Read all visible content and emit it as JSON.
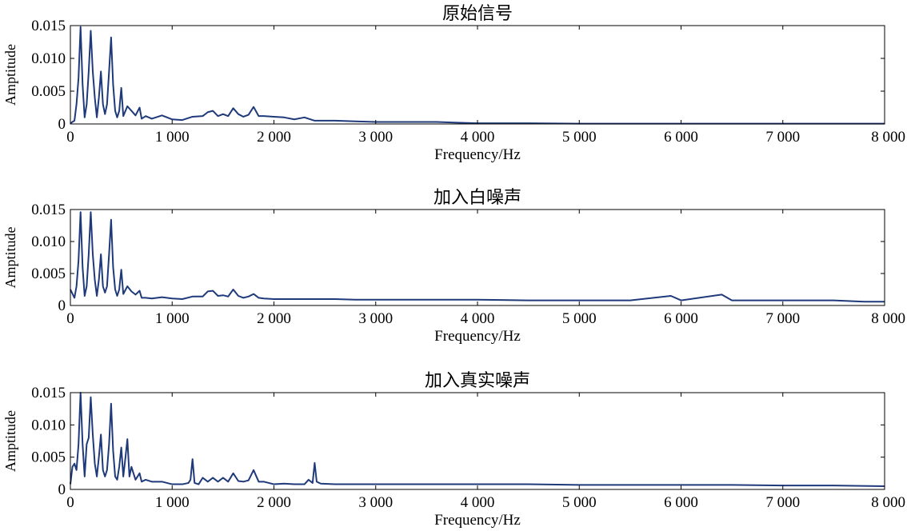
{
  "colors": {
    "line": "#1f3a7a",
    "axis": "#000000",
    "background": "#ffffff"
  },
  "chart_data": [
    {
      "type": "line",
      "title": "原始信号",
      "xlabel": "Frequency/Hz",
      "ylabel": "Amptitude",
      "xlim": [
        0,
        8000
      ],
      "ylim": [
        0,
        0.015
      ],
      "xticks": [
        0,
        1000,
        2000,
        3000,
        4000,
        5000,
        6000,
        7000,
        8000
      ],
      "xtick_labels": [
        "0",
        "1 000",
        "2 000",
        "3 000",
        "4 000",
        "5 000",
        "6 000",
        "7 000",
        "8 000"
      ],
      "yticks": [
        0,
        0.005,
        0.01,
        0.015
      ],
      "ytick_labels": [
        "0",
        "0.005",
        "0.010",
        "0.015"
      ],
      "grid": false,
      "series": [
        {
          "x": [
            0,
            40,
            60,
            80,
            100,
            120,
            140,
            160,
            180,
            200,
            220,
            240,
            260,
            280,
            300,
            320,
            340,
            360,
            380,
            400,
            420,
            440,
            460,
            480,
            500,
            520,
            560,
            600,
            640,
            680,
            700,
            740,
            800,
            900,
            1000,
            1100,
            1200,
            1300,
            1350,
            1400,
            1450,
            1500,
            1550,
            1600,
            1650,
            1700,
            1750,
            1800,
            1850,
            1900,
            2000,
            2100,
            2200,
            2300,
            2400,
            2600,
            2800,
            3000,
            3200,
            3400,
            3600,
            3800,
            4000,
            4500,
            5000,
            6000,
            7000,
            8000
          ],
          "y": [
            0.0001,
            0.0005,
            0.003,
            0.007,
            0.0148,
            0.006,
            0.001,
            0.003,
            0.008,
            0.0142,
            0.008,
            0.004,
            0.001,
            0.004,
            0.008,
            0.003,
            0.0015,
            0.003,
            0.008,
            0.0132,
            0.006,
            0.002,
            0.001,
            0.002,
            0.0055,
            0.0012,
            0.0027,
            0.002,
            0.0013,
            0.0025,
            0.0008,
            0.0012,
            0.0008,
            0.0013,
            0.0007,
            0.0006,
            0.0011,
            0.0012,
            0.0018,
            0.002,
            0.0012,
            0.0015,
            0.0012,
            0.0024,
            0.0015,
            0.0011,
            0.0014,
            0.0026,
            0.0012,
            0.0012,
            0.0011,
            0.001,
            0.0007,
            0.001,
            0.0005,
            0.0005,
            0.0004,
            0.0003,
            0.0003,
            0.0003,
            0.0003,
            0.0002,
            0.0001,
            0.0001,
            5e-05,
            5e-05,
            5e-05,
            5e-05
          ]
        }
      ]
    },
    {
      "type": "line",
      "title": "加入白噪声",
      "xlabel": "Frequency/Hz",
      "ylabel": "Amptitude",
      "xlim": [
        0,
        8000
      ],
      "ylim": [
        0,
        0.015
      ],
      "xticks": [
        0,
        1000,
        2000,
        3000,
        4000,
        5000,
        6000,
        7000,
        8000
      ],
      "xtick_labels": [
        "0",
        "1 000",
        "2 000",
        "3 000",
        "4 000",
        "5 000",
        "6 000",
        "7 000",
        "8 000"
      ],
      "yticks": [
        0,
        0.005,
        0.01,
        0.015
      ],
      "ytick_labels": [
        "0",
        "0.005",
        "0.010",
        "0.015"
      ],
      "grid": false,
      "series": [
        {
          "x": [
            0,
            40,
            60,
            80,
            100,
            120,
            140,
            160,
            180,
            200,
            220,
            240,
            260,
            280,
            300,
            320,
            340,
            360,
            380,
            400,
            420,
            440,
            460,
            480,
            500,
            520,
            560,
            600,
            640,
            680,
            700,
            740,
            800,
            900,
            1000,
            1100,
            1200,
            1300,
            1350,
            1400,
            1450,
            1500,
            1550,
            1600,
            1650,
            1700,
            1750,
            1800,
            1850,
            1900,
            2000,
            2200,
            2400,
            2600,
            2800,
            3000,
            3500,
            4000,
            4500,
            5000,
            5500,
            5900,
            6000,
            6400,
            6500,
            7000,
            7500,
            7800,
            8000
          ],
          "y": [
            0.0025,
            0.0012,
            0.003,
            0.007,
            0.0146,
            0.006,
            0.0015,
            0.003,
            0.008,
            0.0146,
            0.008,
            0.004,
            0.0015,
            0.004,
            0.008,
            0.003,
            0.002,
            0.003,
            0.008,
            0.0134,
            0.006,
            0.0025,
            0.0015,
            0.0025,
            0.0056,
            0.0018,
            0.003,
            0.0022,
            0.0017,
            0.0023,
            0.0012,
            0.0012,
            0.0011,
            0.0013,
            0.0011,
            0.001,
            0.0014,
            0.0014,
            0.0022,
            0.0023,
            0.0015,
            0.0016,
            0.0014,
            0.0025,
            0.0015,
            0.0012,
            0.0014,
            0.0018,
            0.0012,
            0.0011,
            0.001,
            0.001,
            0.001,
            0.001,
            0.0009,
            0.0009,
            0.0009,
            0.0009,
            0.0008,
            0.0008,
            0.0008,
            0.0015,
            0.0008,
            0.0017,
            0.0008,
            0.0008,
            0.0008,
            0.0006,
            0.0006
          ]
        }
      ]
    },
    {
      "type": "line",
      "title": "加入真实噪声",
      "xlabel": "Frequency/Hz",
      "ylabel": "Amptitude",
      "xlim": [
        0,
        8000
      ],
      "ylim": [
        0,
        0.015
      ],
      "xticks": [
        0,
        1000,
        2000,
        3000,
        4000,
        5000,
        6000,
        7000,
        8000
      ],
      "xtick_labels": [
        "0",
        "1 000",
        "2 000",
        "3 000",
        "4 000",
        "5 000",
        "6 000",
        "7 000",
        "8 000"
      ],
      "yticks": [
        0,
        0.005,
        0.01,
        0.015
      ],
      "ytick_labels": [
        "0",
        "0.005",
        "0.010",
        "0.015"
      ],
      "grid": false,
      "series": [
        {
          "x": [
            0,
            20,
            40,
            60,
            80,
            100,
            120,
            140,
            160,
            180,
            200,
            220,
            240,
            260,
            280,
            300,
            320,
            340,
            360,
            380,
            400,
            420,
            440,
            460,
            480,
            500,
            520,
            540,
            560,
            580,
            600,
            640,
            680,
            700,
            740,
            800,
            900,
            1000,
            1100,
            1160,
            1180,
            1200,
            1220,
            1260,
            1300,
            1350,
            1400,
            1450,
            1500,
            1550,
            1600,
            1650,
            1700,
            1750,
            1800,
            1850,
            1900,
            2000,
            2100,
            2200,
            2300,
            2340,
            2380,
            2400,
            2420,
            2460,
            2600,
            3000,
            3500,
            4000,
            4500,
            5000,
            5500,
            6000,
            6500,
            7000,
            7500,
            8000
          ],
          "y": [
            0.0008,
            0.0035,
            0.004,
            0.003,
            0.007,
            0.015,
            0.007,
            0.002,
            0.007,
            0.008,
            0.0143,
            0.0085,
            0.004,
            0.002,
            0.005,
            0.0085,
            0.003,
            0.002,
            0.003,
            0.007,
            0.0133,
            0.006,
            0.002,
            0.0015,
            0.0035,
            0.0065,
            0.002,
            0.0048,
            0.0078,
            0.002,
            0.0035,
            0.0015,
            0.0025,
            0.0012,
            0.0015,
            0.0012,
            0.0012,
            0.0008,
            0.0008,
            0.001,
            0.0015,
            0.0047,
            0.001,
            0.0008,
            0.0018,
            0.0012,
            0.0018,
            0.0012,
            0.0018,
            0.0012,
            0.0025,
            0.0013,
            0.0012,
            0.0014,
            0.003,
            0.0012,
            0.0012,
            0.0008,
            0.0009,
            0.0008,
            0.0008,
            0.0015,
            0.001,
            0.0041,
            0.0012,
            0.0009,
            0.0008,
            0.0008,
            0.0008,
            0.0008,
            0.0008,
            0.0007,
            0.0007,
            0.0007,
            0.0007,
            0.0006,
            0.0006,
            0.0005
          ]
        }
      ]
    }
  ]
}
